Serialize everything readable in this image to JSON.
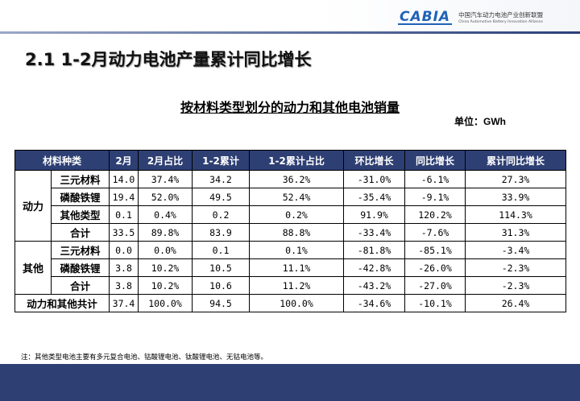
{
  "header": {
    "logo_mark": "CABIA",
    "org_cn": "中国汽车动力电池产业创新联盟",
    "org_en": "China Automotive Battery Innovation Alliance"
  },
  "slide_title": "2.1 1-2月动力电池产量累计同比增长",
  "table_title": "按材料类型划分的动力和其他电池销量",
  "unit": "单位：GWh",
  "columns": [
    "材料种类",
    "2月",
    "2月占比",
    "1-2累计",
    "1-2累计占比",
    "环比增长",
    "同比增长",
    "累计同比增长"
  ],
  "groups": [
    {
      "name": "动力",
      "rows": [
        {
          "type": "三元材料",
          "feb": "14.0",
          "feb_share": "37.4%",
          "cum": "34.2",
          "cum_share": "36.2%",
          "mom": "-31.0%",
          "yoy": "-6.1%",
          "cum_yoy": "27.3%"
        },
        {
          "type": "磷酸铁锂",
          "feb": "19.4",
          "feb_share": "52.0%",
          "cum": "49.5",
          "cum_share": "52.4%",
          "mom": "-35.4%",
          "yoy": "-9.1%",
          "cum_yoy": "33.9%"
        },
        {
          "type": "其他类型",
          "feb": "0.1",
          "feb_share": "0.4%",
          "cum": "0.2",
          "cum_share": "0.2%",
          "mom": "91.9%",
          "yoy": "120.2%",
          "cum_yoy": "114.3%"
        },
        {
          "type": "合计",
          "feb": "33.5",
          "feb_share": "89.8%",
          "cum": "83.9",
          "cum_share": "88.8%",
          "mom": "-33.4%",
          "yoy": "-7.6%",
          "cum_yoy": "31.3%"
        }
      ]
    },
    {
      "name": "其他",
      "rows": [
        {
          "type": "三元材料",
          "feb": "0.0",
          "feb_share": "0.0%",
          "cum": "0.1",
          "cum_share": "0.1%",
          "mom": "-81.8%",
          "yoy": "-85.1%",
          "cum_yoy": "-3.4%"
        },
        {
          "type": "磷酸铁锂",
          "feb": "3.8",
          "feb_share": "10.2%",
          "cum": "10.5",
          "cum_share": "11.1%",
          "mom": "-42.8%",
          "yoy": "-26.0%",
          "cum_yoy": "-2.3%"
        },
        {
          "type": "合计",
          "feb": "3.8",
          "feb_share": "10.2%",
          "cum": "10.6",
          "cum_share": "11.2%",
          "mom": "-43.2%",
          "yoy": "-27.0%",
          "cum_yoy": "-2.3%"
        }
      ]
    }
  ],
  "total": {
    "label": "动力和其他共计",
    "feb": "37.4",
    "feb_share": "100.0%",
    "cum": "94.5",
    "cum_share": "100.0%",
    "mom": "-34.6%",
    "yoy": "-10.1%",
    "cum_yoy": "26.4%"
  },
  "note": "注：其他类型电池主要有多元复合电池、钴酸锂电池、钛酸锂电池、无钴电池等。",
  "colors": {
    "header_bg": "#2e3f73",
    "brand_blue": "#1f62b6"
  }
}
